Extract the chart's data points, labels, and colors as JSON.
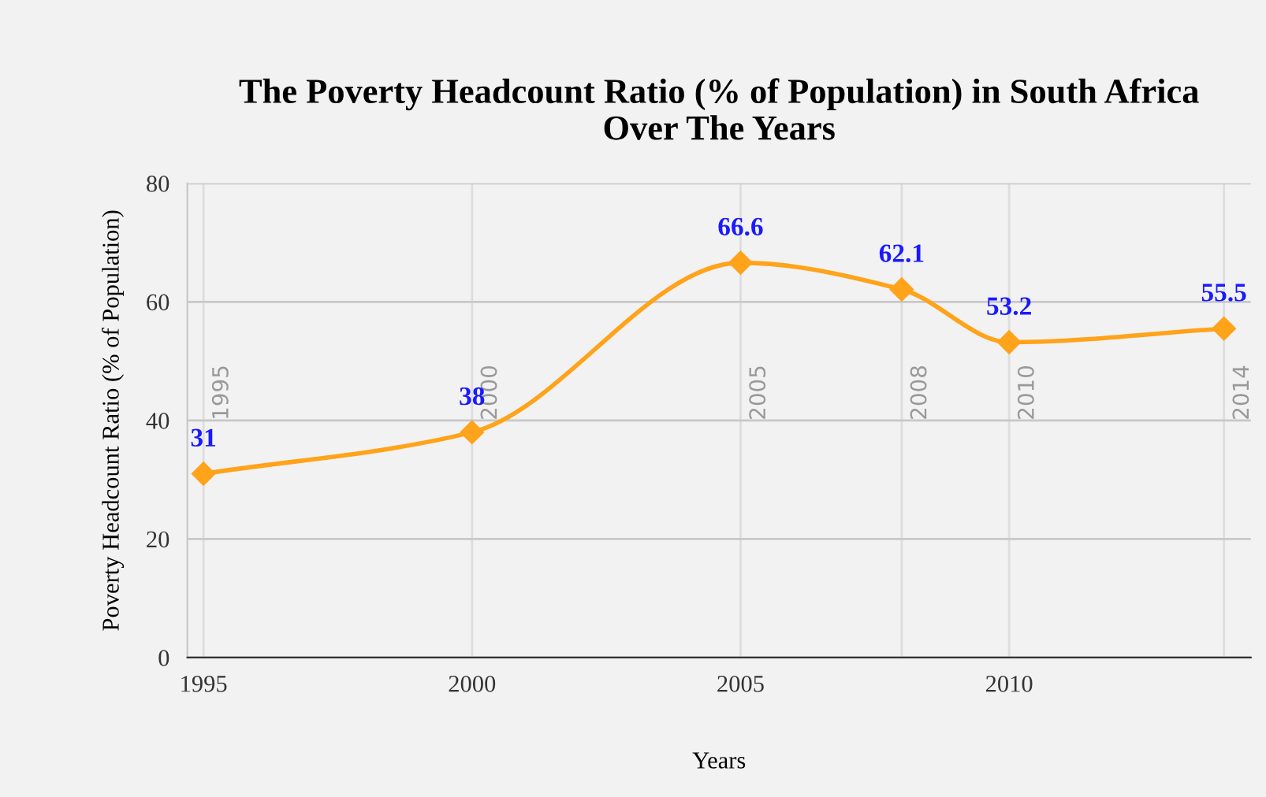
{
  "chart_data": {
    "type": "line",
    "title": "The Poverty Headcount Ratio (% of Population) in South Africa\nOver The Years",
    "xlabel": "Years",
    "ylabel": "Poverty Headcount Ratio (% of Population)",
    "x": [
      1995,
      2000,
      2005,
      2008,
      2010,
      2014
    ],
    "series": [
      {
        "color": "#ffa31a",
        "values": [
          31,
          38,
          66.6,
          62.1,
          53.2,
          55.5
        ]
      }
    ],
    "xlim": [
      1994.7,
      2014.5
    ],
    "xticks": [
      1995,
      2000,
      2005,
      2010
    ],
    "ylim": [
      0,
      80
    ],
    "yticks": [
      0,
      20,
      40,
      60,
      80
    ],
    "ref_lines": [
      {
        "axis": "x",
        "value": 1995,
        "label": "1995",
        "color": "#dddddd"
      },
      {
        "axis": "x",
        "value": 2000,
        "label": "2000",
        "color": "#dddddd"
      },
      {
        "axis": "x",
        "value": 2005,
        "label": "2005",
        "color": "#dddddd"
      },
      {
        "axis": "x",
        "value": 2008,
        "label": "2008",
        "color": "#dddddd"
      },
      {
        "axis": "x",
        "value": 2010,
        "label": "2010",
        "color": "#dddddd"
      },
      {
        "axis": "x",
        "value": 2014,
        "label": "2014",
        "color": "#dddddd"
      }
    ],
    "data_labels": true,
    "grid": "y",
    "marker": "diamond",
    "line_style": "solid"
  }
}
